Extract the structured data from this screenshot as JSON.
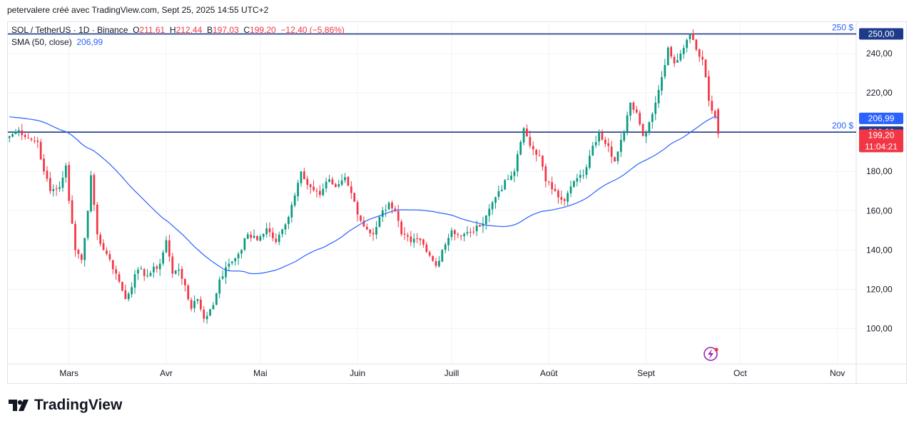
{
  "header": {
    "attribution": "petervalere créé avec TradingView.com, Sept 25, 2025 14:55 UTC+2"
  },
  "legend": {
    "symbol": "SOL / TetherUS · 1D · Binance",
    "o_label": "O",
    "o_value": "211,61",
    "h_label": "H",
    "h_value": "212,44",
    "b_label": "B",
    "b_value": "197,03",
    "c_label": "C",
    "c_value": "199,20",
    "change": "−12,40 (−5,86%)",
    "sma_label": "SMA (50, close)",
    "sma_value": "206,99"
  },
  "levels": [
    {
      "label": "250 $",
      "price": 250,
      "axis_label": "250,00"
    },
    {
      "label": "200 $",
      "price": 200,
      "axis_label": "200,00"
    }
  ],
  "price_tags": {
    "sma": "206,99",
    "close": "199,20",
    "countdown": "11:04:21"
  },
  "colors": {
    "up": "#089981",
    "down": "#f23645",
    "sma": "#2962ff",
    "level": "#1e3a8a",
    "grid": "#f0f3fa"
  },
  "logo": {
    "text": "TradingView",
    "icon": "tradingview-logo-icon"
  },
  "chart_data": {
    "type": "candlestick",
    "y_ticks": [
      "100,00",
      "120,00",
      "140,00",
      "160,00",
      "180,00",
      "220,00",
      "240,00"
    ],
    "y_tick_values": [
      100,
      120,
      140,
      160,
      180,
      220,
      240
    ],
    "ylim": [
      82,
      256
    ],
    "x_months": [
      "Mars",
      "Avr",
      "Mai",
      "Juin",
      "Juill",
      "Août",
      "Sept",
      "Oct",
      "Nov"
    ],
    "x_month_days": [
      19,
      50,
      80,
      111,
      141,
      172,
      203,
      233,
      264
    ],
    "xlim": [
      -0.5,
      270
    ],
    "series": [
      {
        "name": "SOL / TetherUS",
        "kind": "candles",
        "ohlc": []
      },
      {
        "name": "SMA (50, close)",
        "kind": "line",
        "values": []
      }
    ],
    "anchor_closes": [
      [
        0,
        198
      ],
      [
        3,
        201
      ],
      [
        6,
        197
      ],
      [
        9,
        195
      ],
      [
        11,
        180
      ],
      [
        13,
        170
      ],
      [
        16,
        172
      ],
      [
        18,
        183
      ],
      [
        19,
        165
      ],
      [
        21,
        140
      ],
      [
        23,
        135
      ],
      [
        25,
        160
      ],
      [
        26,
        178
      ],
      [
        28,
        148
      ],
      [
        30,
        140
      ],
      [
        31,
        138
      ],
      [
        34,
        128
      ],
      [
        37,
        115
      ],
      [
        41,
        130
      ],
      [
        44,
        127
      ],
      [
        48,
        133
      ],
      [
        50,
        145
      ],
      [
        52,
        128
      ],
      [
        54,
        130
      ],
      [
        56,
        122
      ],
      [
        58,
        110
      ],
      [
        60,
        115
      ],
      [
        62,
        105
      ],
      [
        65,
        112
      ],
      [
        67,
        125
      ],
      [
        70,
        133
      ],
      [
        73,
        138
      ],
      [
        76,
        148
      ],
      [
        79,
        145
      ],
      [
        82,
        151
      ],
      [
        85,
        144
      ],
      [
        88,
        153
      ],
      [
        90,
        163
      ],
      [
        93,
        180
      ],
      [
        96,
        172
      ],
      [
        99,
        168
      ],
      [
        102,
        176
      ],
      [
        104,
        172
      ],
      [
        107,
        177
      ],
      [
        109,
        169
      ],
      [
        111,
        158
      ],
      [
        113,
        152
      ],
      [
        116,
        148
      ],
      [
        118,
        157
      ],
      [
        121,
        164
      ],
      [
        123,
        160
      ],
      [
        125,
        148
      ],
      [
        128,
        144
      ],
      [
        131,
        145
      ],
      [
        133,
        139
      ],
      [
        136,
        132
      ],
      [
        138,
        140
      ],
      [
        141,
        150
      ],
      [
        144,
        147
      ],
      [
        147,
        149
      ],
      [
        150,
        152
      ],
      [
        153,
        161
      ],
      [
        156,
        170
      ],
      [
        159,
        176
      ],
      [
        161,
        180
      ],
      [
        163,
        195
      ],
      [
        164,
        202
      ],
      [
        166,
        193
      ],
      [
        169,
        188
      ],
      [
        171,
        175
      ],
      [
        174,
        170
      ],
      [
        177,
        165
      ],
      [
        180,
        175
      ],
      [
        183,
        178
      ],
      [
        185,
        188
      ],
      [
        188,
        200
      ],
      [
        191,
        193
      ],
      [
        193,
        185
      ],
      [
        196,
        200
      ],
      [
        198,
        215
      ],
      [
        200,
        210
      ],
      [
        202,
        198
      ],
      [
        204,
        205
      ],
      [
        206,
        215
      ],
      [
        208,
        228
      ],
      [
        210,
        243
      ],
      [
        212,
        235
      ],
      [
        214,
        240
      ],
      [
        216,
        247
      ],
      [
        217,
        250
      ],
      [
        219,
        242
      ],
      [
        221,
        237
      ],
      [
        222,
        228
      ],
      [
        223,
        216
      ],
      [
        225,
        208
      ],
      [
        226,
        199.2
      ]
    ]
  }
}
